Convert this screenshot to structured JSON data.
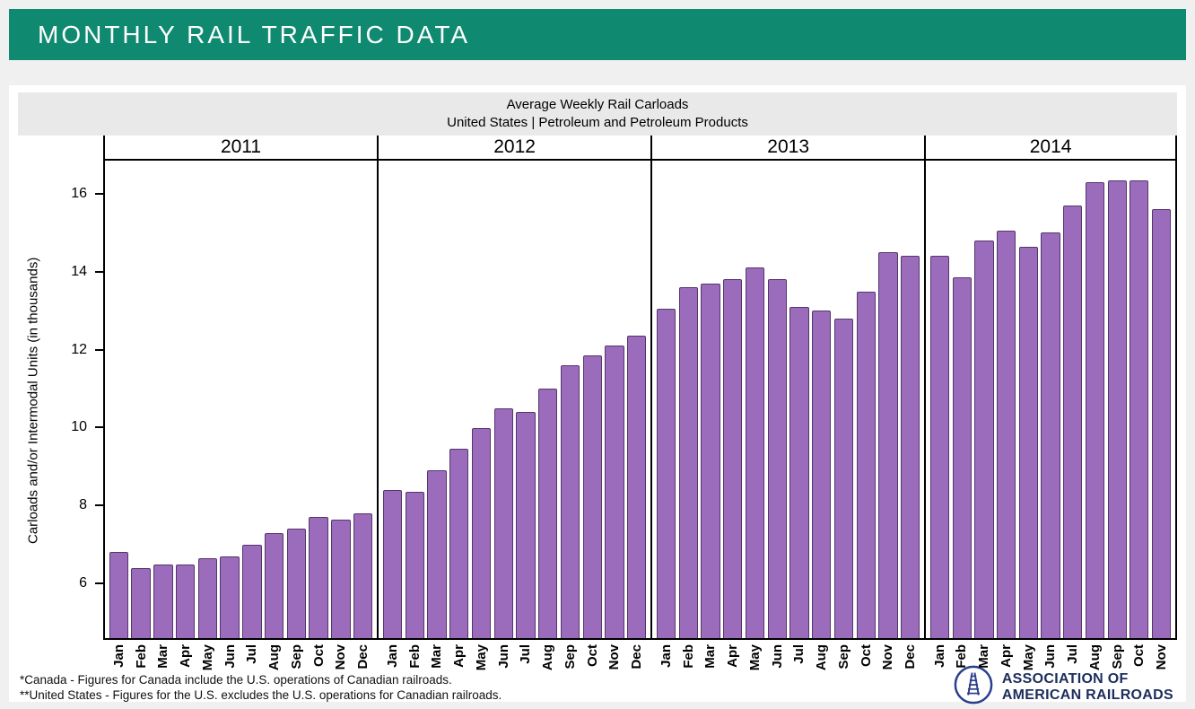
{
  "header": {
    "title": "MONTHLY RAIL TRAFFIC DATA"
  },
  "colors": {
    "header_bg": "#0f8a70",
    "bar_fill": "#9b6cbb",
    "bar_border": "#55356b",
    "logo_blue": "#2b3f8c",
    "logo_text": "#1d2d5c",
    "title_band_bg": "#e9e9e9"
  },
  "chart": {
    "title_line1": "Average Weekly Rail Carloads",
    "title_line2": "United States | Petroleum and Petroleum Products",
    "ylabel": "Carloads and/or Intermodal Units (in thousands)"
  },
  "chart_data": {
    "type": "bar",
    "title": "Average Weekly Rail Carloads",
    "subtitle": "United States | Petroleum and Petroleum Products",
    "ylabel": "Carloads and/or Intermodal Units (in thousands)",
    "ylim": [
      4.6,
      16.85
    ],
    "yticks": [
      6,
      8,
      10,
      12,
      14,
      16
    ],
    "grid": false,
    "legend": "none",
    "groups": [
      {
        "year": "2011",
        "months": [
          "Jan",
          "Feb",
          "Mar",
          "Apr",
          "May",
          "Jun",
          "Jul",
          "Aug",
          "Sep",
          "Oct",
          "Nov",
          "Dec"
        ],
        "values": [
          6.8,
          6.4,
          6.5,
          6.5,
          6.65,
          6.7,
          7.0,
          7.3,
          7.4,
          7.7,
          7.65,
          7.8
        ]
      },
      {
        "year": "2012",
        "months": [
          "Jan",
          "Feb",
          "Mar",
          "Apr",
          "May",
          "Jun",
          "Jul",
          "Aug",
          "Sep",
          "Oct",
          "Nov",
          "Dec"
        ],
        "values": [
          8.4,
          8.35,
          8.9,
          9.45,
          10.0,
          10.5,
          10.4,
          11.0,
          11.6,
          11.85,
          12.1,
          12.35
        ]
      },
      {
        "year": "2013",
        "months": [
          "Jan",
          "Feb",
          "Mar",
          "Apr",
          "May",
          "Jun",
          "Jul",
          "Aug",
          "Sep",
          "Oct",
          "Nov",
          "Dec"
        ],
        "values": [
          13.05,
          13.6,
          13.7,
          13.8,
          14.1,
          13.8,
          13.1,
          13.0,
          12.8,
          13.5,
          14.5,
          14.4
        ]
      },
      {
        "year": "2014",
        "months": [
          "Jan",
          "Feb",
          "Mar",
          "Apr",
          "May",
          "Jun",
          "Jul",
          "Aug",
          "Sep",
          "Oct",
          "Nov"
        ],
        "values": [
          14.4,
          13.85,
          14.8,
          15.05,
          14.65,
          15.0,
          15.7,
          16.3,
          16.35,
          16.35,
          15.6
        ]
      }
    ]
  },
  "footnotes": [
    "*Canada - Figures for Canada include the U.S. operations of Canadian railroads.",
    "**United States - Figures for the U.S. excludes the U.S. operations for Canadian railroads."
  ],
  "logo": {
    "line1": "ASSOCIATION OF",
    "line2": "AMERICAN RAILROADS"
  }
}
